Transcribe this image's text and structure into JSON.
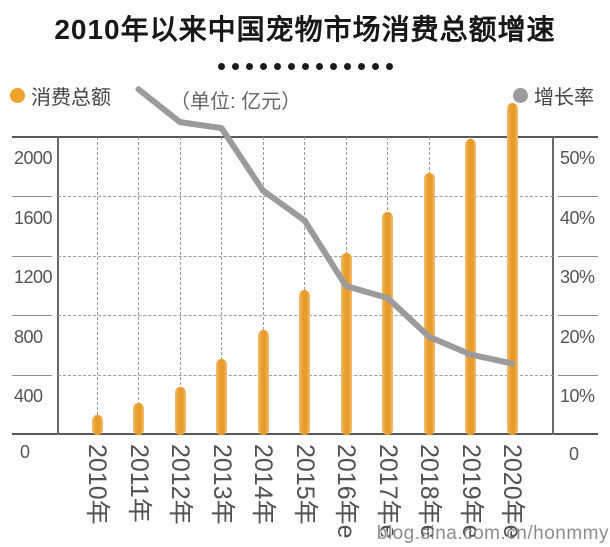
{
  "title": "2010年以来中国宠物市场消费总额增速",
  "legend": {
    "bars_label": "消费总额",
    "line_label": "增长率",
    "unit_label": "（单位: 亿元）"
  },
  "watermark": "blog.sina.com.cn/honmmy",
  "title_dots_count": 13,
  "colors": {
    "bar_orange": "#E99E2D",
    "bar_orange_light": "#F4BF72",
    "line_gray": "#9B9B9D",
    "title_text": "#181818",
    "axis_text": "#565656",
    "gridline": "#9C9C9C",
    "axis_line": "#585858"
  },
  "axes": {
    "left": {
      "labels": [
        "2000",
        "1600",
        "1200",
        "800",
        "400"
      ],
      "values": [
        2000,
        1600,
        1200,
        800,
        400
      ],
      "zero_label": "0"
    },
    "right": {
      "labels": [
        "50%",
        "40%",
        "30%",
        "20%",
        "10%"
      ],
      "values": [
        50,
        40,
        30,
        20,
        10
      ],
      "zero_label": "0"
    }
  },
  "chart_data": {
    "type": "bar+line",
    "title": "2010年以来中国宠物市场消费总额增速",
    "categories": [
      "2010年",
      "2011年",
      "2012年",
      "2013年",
      "2014年",
      "2015年",
      "2016年e",
      "2017年e",
      "2018年e",
      "2019年e",
      "2020年e"
    ],
    "series": [
      {
        "name": "消费总额",
        "type": "bar",
        "axis": "left",
        "unit": "亿元",
        "values": [
          134,
          215,
          320,
          510,
          705,
          975,
          1220,
          1495,
          1760,
          1985,
          2230
        ]
      },
      {
        "name": "增长率",
        "type": "line",
        "axis": "right",
        "unit": "%",
        "values": [
          null,
          58,
          52.5,
          51.5,
          41,
          36,
          25,
          23,
          16.5,
          13.5,
          12
        ]
      }
    ],
    "left_axis": {
      "min": 0,
      "max": 2000,
      "step": 400
    },
    "right_axis": {
      "min": 0,
      "max": 50,
      "step": 10,
      "unit": "%"
    },
    "grid": "dashed",
    "legend_position": "top"
  }
}
